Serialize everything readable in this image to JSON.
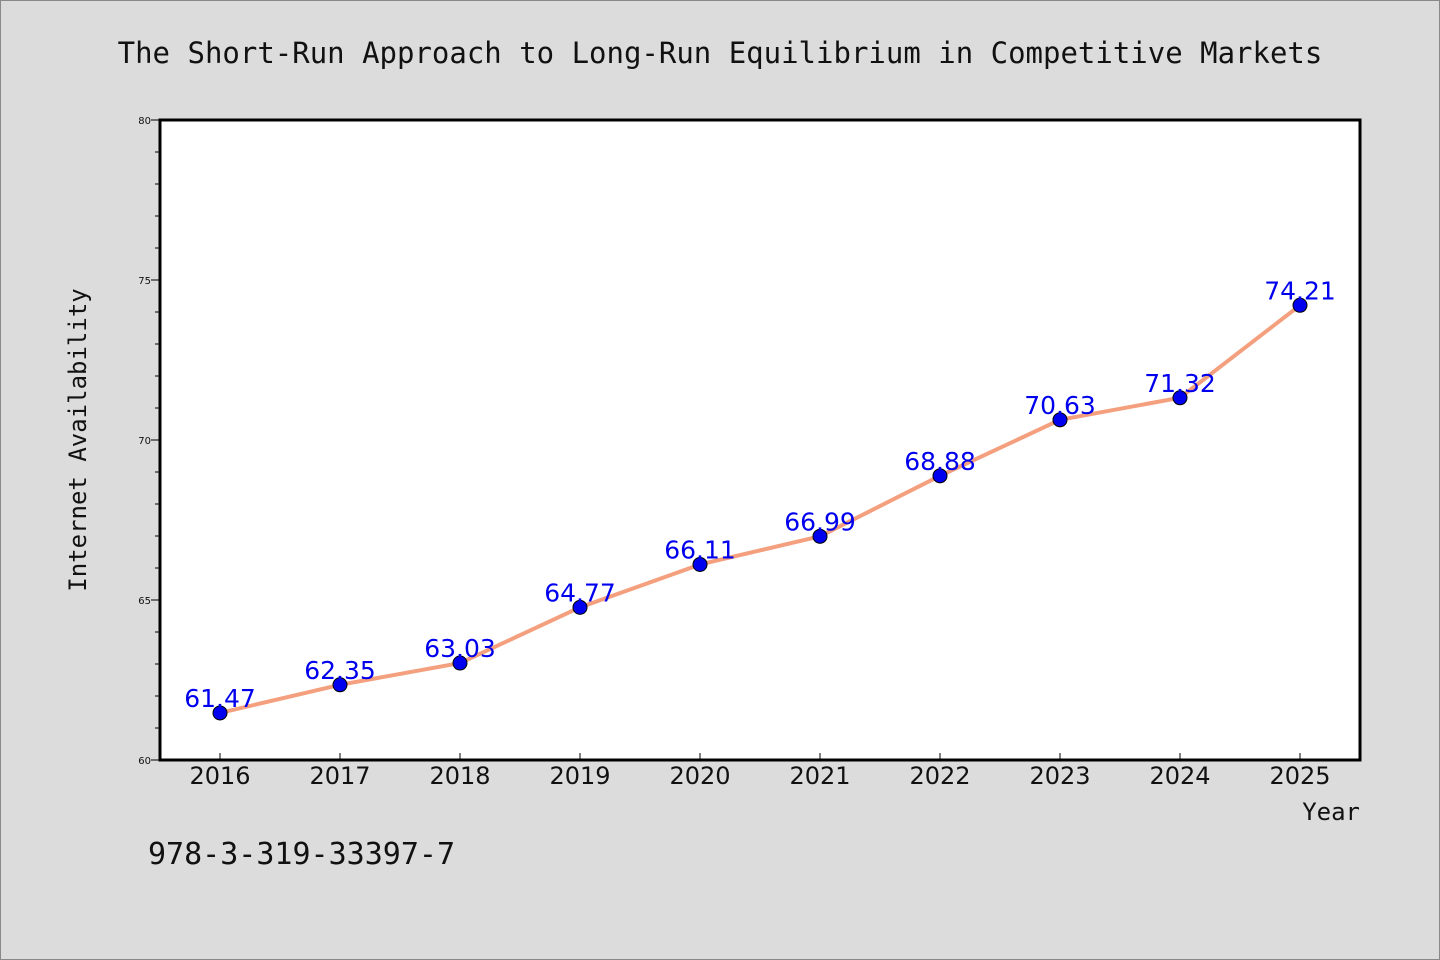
{
  "chart_data": {
    "type": "line",
    "title": "The Short-Run Approach to Long-Run Equilibrium in Competitive Markets",
    "xlabel": "Year",
    "ylabel": "Internet Availability",
    "categories": [
      "2016",
      "2017",
      "2018",
      "2019",
      "2020",
      "2021",
      "2022",
      "2023",
      "2024",
      "2025"
    ],
    "series": [
      {
        "values": [
          61.47,
          62.35,
          63.03,
          64.77,
          66.11,
          66.99,
          68.88,
          70.63,
          71.32,
          74.21
        ],
        "labels": [
          "61.47",
          "62.35",
          "63.03",
          "64.77",
          "66.11",
          "66.99",
          "68.88",
          "70.63",
          "71.32",
          "74.21"
        ]
      }
    ],
    "ylim": [
      60,
      80
    ],
    "yticks": [
      "60",
      "65",
      "70",
      "75",
      "80"
    ],
    "grid": false,
    "line_color": "#f4a07e",
    "marker_color": "#0000ee",
    "label_color": "#0000ee"
  },
  "footer": {
    "isbn": "978-3-319-33397-7"
  }
}
